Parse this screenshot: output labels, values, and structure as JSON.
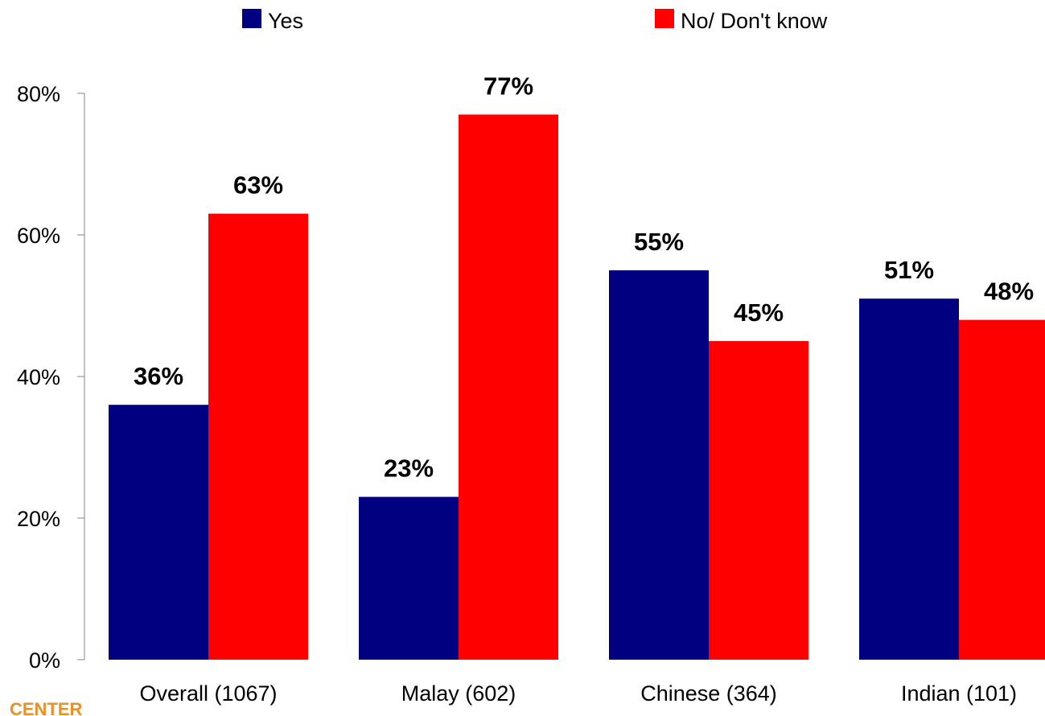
{
  "chart_data": {
    "type": "bar",
    "title": "",
    "xlabel": "",
    "ylabel": "",
    "categories": [
      "Overall (1067)",
      "Malay (602)",
      "Chinese (364)",
      "Indian (101)"
    ],
    "series": [
      {
        "name": "Yes",
        "values": [
          36,
          23,
          55,
          51
        ],
        "color": "#000080"
      },
      {
        "name": "No/ Don't know",
        "values": [
          63,
          77,
          45,
          48
        ],
        "color": "#ff0000"
      }
    ],
    "ylim": [
      0,
      80
    ],
    "yticks": [
      0,
      20,
      40,
      60,
      80
    ],
    "ytick_labels": [
      "0%",
      "20%",
      "40%",
      "60%",
      "80%"
    ],
    "data_labels": [
      [
        "36%",
        "23%",
        "55%",
        "51%"
      ],
      [
        "63%",
        "77%",
        "45%",
        "48%"
      ]
    ],
    "legend": {
      "placement": "top"
    },
    "grid": false
  },
  "logo": {
    "text": "CENTER"
  }
}
